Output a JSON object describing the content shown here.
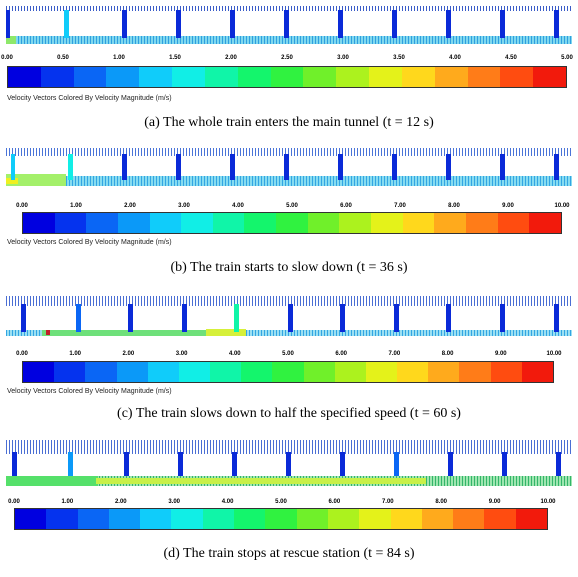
{
  "colormap": [
    "#0000e0",
    "#0533ee",
    "#0a66f5",
    "#0b99f8",
    "#10ccfa",
    "#11eee6",
    "#10f5a8",
    "#14f56c",
    "#30f240",
    "#70f02a",
    "#acf21e",
    "#e4f21a",
    "#ffd81c",
    "#ffaa1c",
    "#ff7c18",
    "#ff4c10",
    "#f21a0c"
  ],
  "panels": [
    {
      "colorbar_title": "Velocity Vectors Colored By Velocity Magnitude (m/s)",
      "ticks": [
        "0.00",
        "0.50",
        "1.00",
        "1.50",
        "2.00",
        "2.50",
        "3.00",
        "3.50",
        "4.00",
        "4.50",
        "5.00"
      ],
      "caption": "(a) The whole train enters the main tunnel (t = 12 s)"
    },
    {
      "colorbar_title": "Velocity Vectors Colored By Velocity Magnitude (m/s)",
      "ticks": [
        "0.00",
        "1.00",
        "2.00",
        "3.00",
        "4.00",
        "5.00",
        "6.00",
        "7.00",
        "8.00",
        "9.00",
        "10.00"
      ],
      "caption": "(b) The train starts to slow down (t = 36 s)"
    },
    {
      "colorbar_title": "Velocity Vectors Colored By Velocity Magnitude (m/s)",
      "ticks": [
        "0.00",
        "1.00",
        "2.00",
        "3.00",
        "4.00",
        "5.00",
        "6.00",
        "7.00",
        "8.00",
        "9.00",
        "10.00"
      ],
      "caption": "(c) The train slows down to half the specified speed (t = 60 s)"
    },
    {
      "colorbar_title": "",
      "ticks": [
        "0.00",
        "1.00",
        "2.00",
        "3.00",
        "4.00",
        "5.00",
        "6.00",
        "7.00",
        "8.00",
        "9.00",
        "10.00"
      ],
      "caption": "(d) The train stops at rescue station (t = 84 s)"
    }
  ]
}
